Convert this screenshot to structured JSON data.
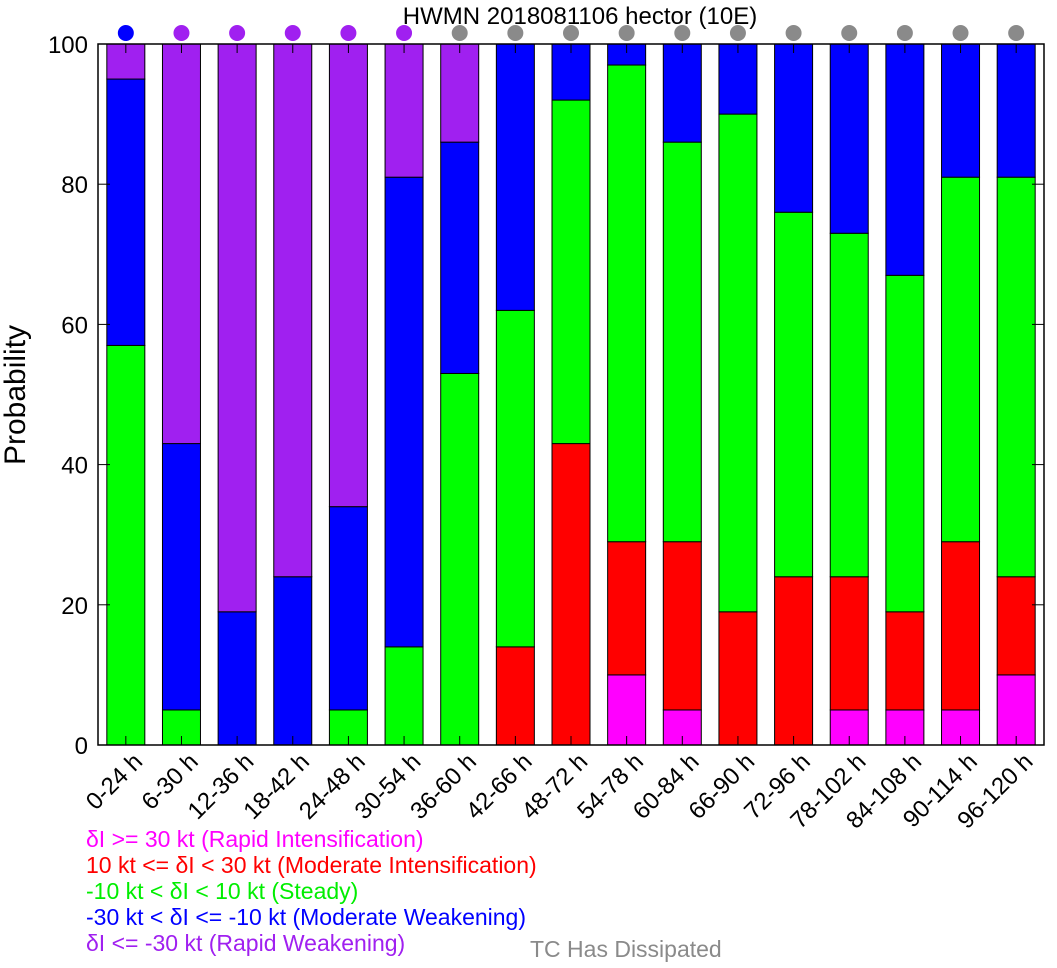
{
  "chart_data": {
    "type": "bar",
    "stacked": true,
    "title": "HWMN 2018081106 hector (10E)",
    "xlabel": "",
    "ylabel": "Probability",
    "ylim": [
      0,
      100
    ],
    "yticks": [
      "0",
      "20",
      "40",
      "60",
      "80",
      "100"
    ],
    "categories": [
      "0-24 h",
      "6-30 h",
      "12-36 h",
      "18-42 h",
      "24-48 h",
      "30-54 h",
      "36-60 h",
      "42-66 h",
      "48-72 h",
      "54-78 h",
      "60-84 h",
      "66-90 h",
      "72-96 h",
      "78-102 h",
      "84-108 h",
      "90-114 h",
      "96-120 h"
    ],
    "series": [
      {
        "name": "δI >= 30 kt (Rapid Intensification)",
        "color": "#ff00ff",
        "values": [
          0,
          0,
          0,
          0,
          0,
          0,
          0,
          0,
          0,
          10,
          5,
          0,
          0,
          5,
          5,
          5,
          10
        ]
      },
      {
        "name": "10 kt <= δI < 30 kt (Moderate Intensification)",
        "color": "#ff0000",
        "values": [
          0,
          0,
          0,
          0,
          0,
          0,
          0,
          14,
          43,
          19,
          24,
          19,
          24,
          19,
          14,
          24,
          14
        ]
      },
      {
        "name": "-10 kt < δI < 10 kt (Steady)",
        "color": "#00ff00",
        "values": [
          57,
          5,
          0,
          0,
          5,
          14,
          53,
          48,
          49,
          68,
          57,
          71,
          52,
          49,
          48,
          52,
          57
        ]
      },
      {
        "name": "-30 kt < δI <= -10 kt (Moderate Weakening)",
        "color": "#0000ff",
        "values": [
          38,
          38,
          19,
          24,
          29,
          67,
          33,
          38,
          8,
          3,
          14,
          10,
          24,
          27,
          33,
          19,
          19
        ]
      },
      {
        "name": "δI <= -30 kt (Rapid Weakening)",
        "color": "#a020f0",
        "values": [
          5,
          57,
          81,
          76,
          66,
          19,
          14,
          0,
          0,
          0,
          0,
          0,
          0,
          0,
          0,
          0,
          0
        ]
      }
    ],
    "status_dot_colors": [
      "#0000ff",
      "#a020f0",
      "#a020f0",
      "#a020f0",
      "#a020f0",
      "#a020f0",
      "#8a8a8a",
      "#8a8a8a",
      "#8a8a8a",
      "#8a8a8a",
      "#8a8a8a",
      "#8a8a8a",
      "#8a8a8a",
      "#8a8a8a",
      "#8a8a8a",
      "#8a8a8a",
      "#8a8a8a"
    ],
    "extra_legend": {
      "label": "TC Has Dissipated",
      "color": "#8a8a8a"
    }
  }
}
